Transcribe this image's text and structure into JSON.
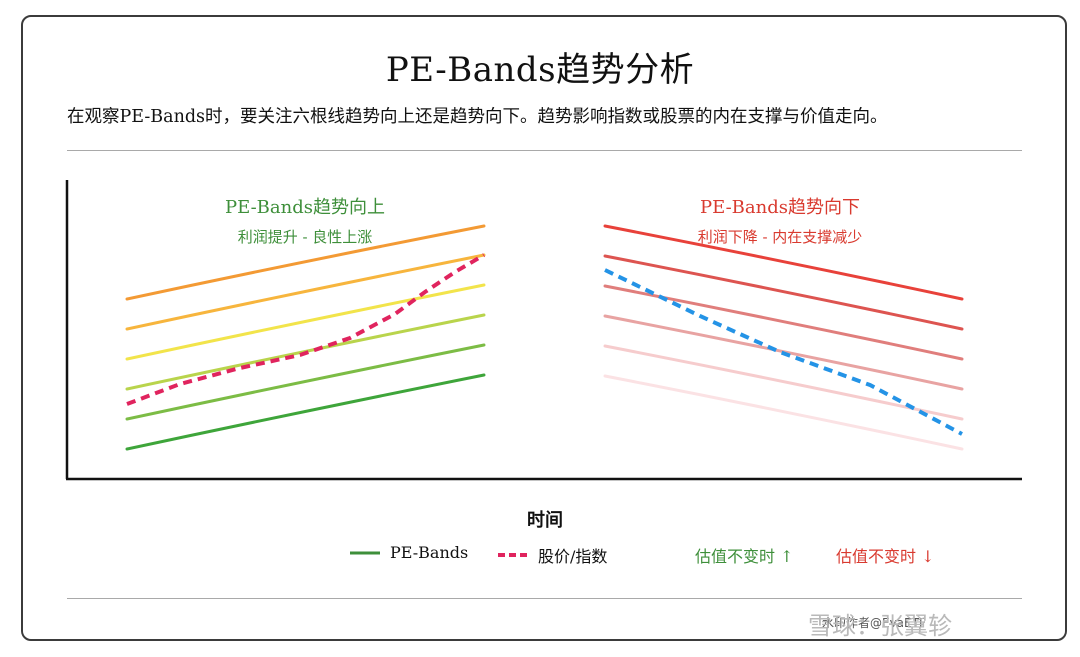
{
  "title": "PE-Bands趋势分析",
  "subtitle": "在观察PE-Bands时，要关注六根线趋势向上还是趋势向下。趋势影响指数或股票的内在支撑与价值走向。",
  "panels": {
    "up": {
      "title": "PE-Bands趋势向上",
      "subtitle": "利润提升 - 良性上涨",
      "color": "#3e8f3a"
    },
    "down": {
      "title": "PE-Bands趋势向下",
      "subtitle": "利润下降 - 内在支撑减少",
      "color": "#d93a2f"
    }
  },
  "x_axis_label": "时间",
  "legend": {
    "bands": "PE-Bands",
    "price": "股价/指数",
    "up_note": "估值不变时 ↑",
    "down_note": "估值不变时 ↓"
  },
  "watermark": "雪球：张翼轸",
  "credit": "水印作者@EvaETF",
  "colors": {
    "up_bands": [
      "#3ea53a",
      "#7cbc45",
      "#b9d44c",
      "#f2e44b",
      "#f7b53d",
      "#f39a34"
    ],
    "down_bands": [
      "#e8413a",
      "#dd5450",
      "#e07e7c",
      "#e8a3a2",
      "#f6cccd",
      "#fbe2e4"
    ],
    "price_up": "#e0245e",
    "price_down": "#2493e6"
  }
}
